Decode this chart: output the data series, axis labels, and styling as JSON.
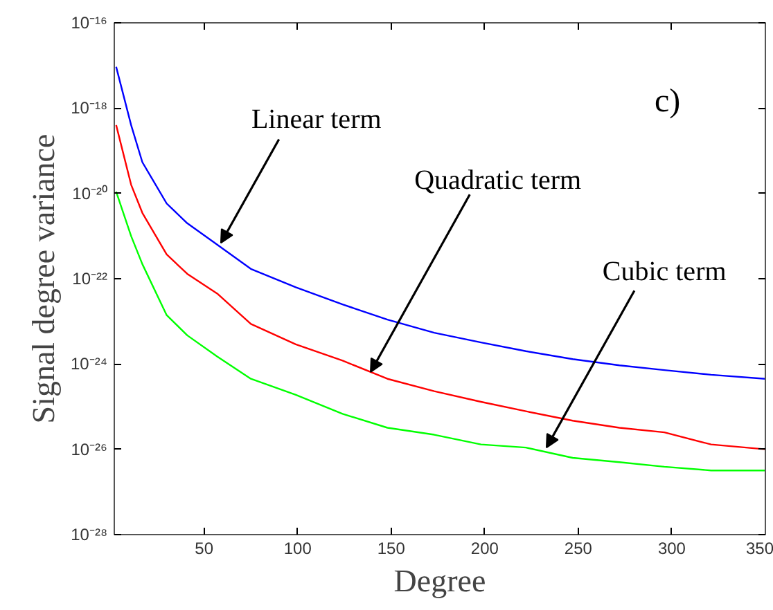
{
  "chart_data": {
    "type": "line",
    "xlabel": "Degree",
    "ylabel": "Signal degree variance",
    "log": "y",
    "xlim": [
      2,
      350
    ],
    "xticks": [
      50,
      100,
      150,
      200,
      250,
      300,
      350
    ],
    "ylim": [
      1e-28,
      1e-16
    ],
    "yticks": [
      {
        "value": 1e-28,
        "label": "10⁻²⁸"
      },
      {
        "value": 1e-26,
        "label": "10⁻²⁶"
      },
      {
        "value": 1e-24,
        "label": "10⁻²⁴"
      },
      {
        "value": 1e-22,
        "label": "10⁻²²"
      },
      {
        "value": 1e-20,
        "label": "10⁻²⁰"
      },
      {
        "value": 1e-18,
        "label": "10⁻¹⁸"
      },
      {
        "value": 1e-16,
        "label": "10⁻¹⁶"
      }
    ],
    "grid": false,
    "marker": "none",
    "line_style": "solid",
    "x": [
      3,
      11,
      17,
      30,
      41,
      57,
      75,
      99,
      124,
      148,
      173,
      198,
      222,
      247,
      272,
      296,
      321,
      350
    ],
    "series": [
      {
        "color": "#0000ff",
        "values": [
          9.3e-18,
          4e-19,
          5.4e-20,
          5.8e-21,
          2e-21,
          6.3e-22,
          1.7e-22,
          6.3e-23,
          2.5e-23,
          1.1e-23,
          5.4e-24,
          3.2e-24,
          2e-24,
          1.3e-24,
          9.3e-25,
          7.2e-25,
          5.6e-25,
          4.5e-25
        ]
      },
      {
        "color": "#ff0000",
        "values": [
          4e-19,
          1.6e-20,
          3.5e-21,
          3.7e-22,
          1.3e-22,
          4.5e-23,
          8.7e-24,
          2.9e-24,
          1.2e-24,
          4.5e-25,
          2.3e-25,
          1.3e-25,
          7.8e-26,
          4.7e-26,
          3.2e-26,
          2.5e-26,
          1.3e-26,
          1e-26
        ]
      },
      {
        "color": "#00ff00",
        "values": [
          1.1e-20,
          1e-21,
          2.2e-22,
          1.4e-23,
          4.7e-24,
          1.5e-24,
          4.5e-25,
          1.9e-25,
          6.8e-26,
          3.2e-26,
          2.2e-26,
          1.3e-26,
          1.1e-26,
          6.3e-27,
          5e-27,
          3.9e-27,
          3.2e-27,
          3.2e-27
        ]
      }
    ],
    "annotations": [
      {
        "text": "Linear term",
        "x": 59,
        "y": 6.9e-22
      },
      {
        "text": "Quadratic term",
        "x": 139,
        "y": 6.5e-25
      },
      {
        "text": "Cubic term",
        "x": 233,
        "y": 1.1e-26
      },
      "c)"
    ]
  }
}
